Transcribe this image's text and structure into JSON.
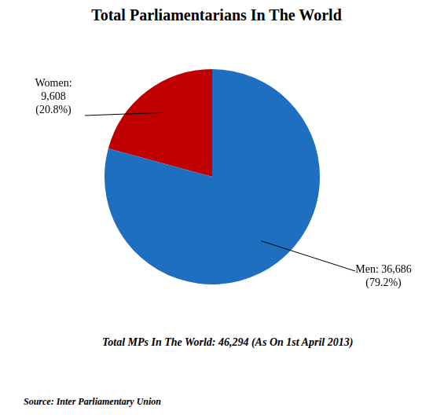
{
  "chart_data": {
    "type": "pie",
    "title": "Total Parliamentarians In The World",
    "categories": [
      "Women",
      "Men"
    ],
    "values": [
      9608,
      36686
    ],
    "value_labels": [
      [
        "Women:",
        "9,608",
        "(20.8%)"
      ],
      [
        "Men: 36,686",
        "(79.2%)"
      ]
    ],
    "colors": [
      "#c00000",
      "#1f6fc0"
    ],
    "data_labels": true,
    "footnote": "Total MPs In The World: 46,294  (As On 1st April 2013)",
    "source": "Source: Inter Parliamentary Union"
  }
}
